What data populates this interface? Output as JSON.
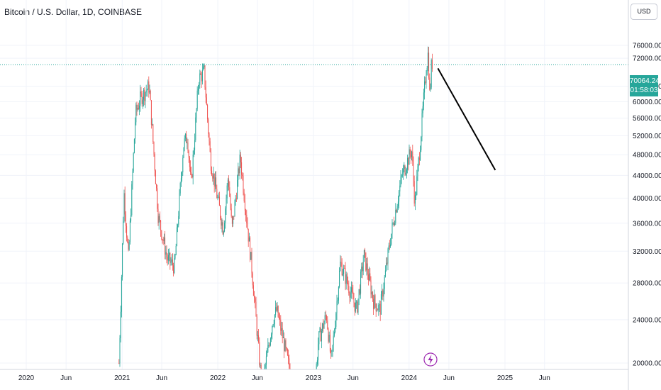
{
  "header": {
    "title": "Bitcoin / U.S. Dollar, 1D, COINBASE"
  },
  "currency_button": "USD",
  "last_price": {
    "value": "70064.24",
    "countdown": "01:58:03",
    "color": "#26a69a"
  },
  "colors": {
    "up": "#26a69a",
    "down": "#ef5350",
    "grid": "#f0f3fa",
    "axis_text": "#131722",
    "drawing_line": "#000000",
    "event_icon": "#9c27b0"
  },
  "icons": {
    "event_marker": "lightning-bolt-icon"
  },
  "chart_data": {
    "type": "candlestick",
    "title": "Bitcoin / U.S. Dollar, 1D, COINBASE",
    "y_ticks": [
      "76000.00",
      "72000.00",
      "64000.00",
      "60000.00",
      "56000.00",
      "52000.00",
      "48000.00",
      "44000.00",
      "40000.00",
      "36000.00",
      "32000.00",
      "28000.00",
      "24000.00",
      "20000.00"
    ],
    "x_ticks": [
      "2020",
      "Jun",
      "2021",
      "Jun",
      "2022",
      "Jun",
      "2023",
      "Jun",
      "2024",
      "Jun",
      "2025",
      "Jun"
    ],
    "ylim": [
      19500,
      80000
    ],
    "price_path": [
      [
        "2020-12-20",
        20000
      ],
      [
        "2021-01-08",
        41000
      ],
      [
        "2021-01-25",
        31000
      ],
      [
        "2021-02-21",
        57000
      ],
      [
        "2021-03-13",
        61000
      ],
      [
        "2021-04-14",
        64000
      ],
      [
        "2021-05-19",
        37000
      ],
      [
        "2021-06-22",
        31000
      ],
      [
        "2021-07-20",
        30000
      ],
      [
        "2021-08-23",
        50000
      ],
      [
        "2021-09-07",
        52000
      ],
      [
        "2021-09-21",
        42000
      ],
      [
        "2021-10-20",
        66000
      ],
      [
        "2021-11-10",
        68000
      ],
      [
        "2021-12-04",
        47000
      ],
      [
        "2022-01-22",
        35000
      ],
      [
        "2022-02-10",
        44000
      ],
      [
        "2022-02-24",
        35000
      ],
      [
        "2022-03-28",
        47500
      ],
      [
        "2022-05-10",
        30000
      ],
      [
        "2022-06-18",
        18000
      ],
      [
        "2022-07-30",
        24000
      ],
      [
        "2022-08-14",
        25000
      ],
      [
        "2022-11-09",
        16000
      ],
      [
        "2022-12-31",
        16500
      ],
      [
        "2023-01-20",
        22000
      ],
      [
        "2023-02-20",
        24500
      ],
      [
        "2023-03-10",
        20000
      ],
      [
        "2023-04-14",
        30500
      ],
      [
        "2023-06-15",
        25000
      ],
      [
        "2023-07-13",
        31500
      ],
      [
        "2023-08-18",
        26000
      ],
      [
        "2023-09-12",
        25000
      ],
      [
        "2023-10-23",
        34000
      ],
      [
        "2023-12-05",
        44000
      ],
      [
        "2024-01-11",
        49000
      ],
      [
        "2024-01-23",
        39000
      ],
      [
        "2024-02-15",
        52000
      ],
      [
        "2024-03-05",
        68000
      ],
      [
        "2024-03-14",
        73800
      ],
      [
        "2024-03-20",
        61000
      ],
      [
        "2024-03-27",
        71000
      ],
      [
        "2024-04-01",
        70064
      ]
    ],
    "trend_line": {
      "start": [
        "2024-04-20",
        69000
      ],
      "end": [
        "2024-11-25",
        45000
      ]
    },
    "last_price_line": 70064.24
  }
}
